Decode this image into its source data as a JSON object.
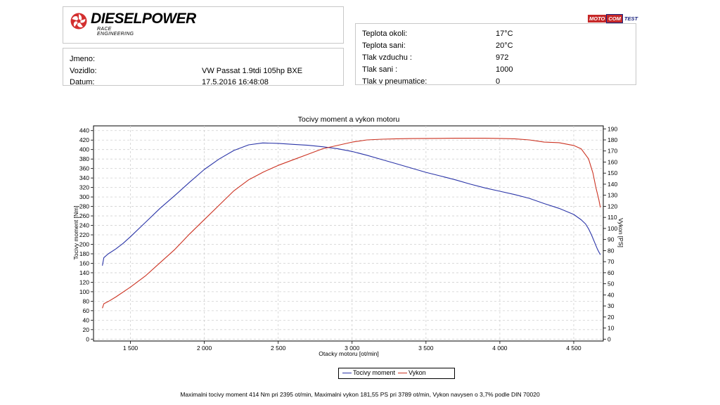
{
  "logo": {
    "brand": "DIESELPOWER",
    "tagline": "RACE ENGINEERING"
  },
  "partner_logo": {
    "part1": "MOTO",
    "part2": "COM",
    "part3": "TEST"
  },
  "vehicle_info": {
    "name_label": "Jmeno:",
    "name_value": "",
    "vehicle_label": "Vozidlo:",
    "vehicle_value": "VW Passat 1.9tdi 105hp BXE",
    "date_label": "Datum:",
    "date_value": "17.5.2016 16:48:08"
  },
  "conditions": [
    {
      "label": "Teplota okoli:",
      "value": "17°C"
    },
    {
      "label": "Teplota sani:",
      "value": "20°C"
    },
    {
      "label": "Tlak vzduchu :",
      "value": "972"
    },
    {
      "label": "Tlak sani :",
      "value": "1000"
    },
    {
      "label": "Tlak v pneumatice:",
      "value": "0"
    }
  ],
  "colors": {
    "torque": "#2b35a8",
    "power": "#cc3322",
    "grid": "#d0d0d0"
  },
  "chart_data": {
    "type": "line",
    "title": "Tocivy moment a vykon motoru",
    "xlabel": "Otacky motoru [ot/min]",
    "ylabel": "Tocivy moment [Nm]",
    "y2label": "Vykon [PS]",
    "xlim": [
      1250,
      4700
    ],
    "ylim": [
      -4,
      450
    ],
    "y2lim": [
      -1.7,
      192.7
    ],
    "x_ticks": [
      1500,
      2000,
      2500,
      3000,
      3500,
      4000,
      4500
    ],
    "x_tick_labels": [
      "1 500",
      "2 000",
      "2 500",
      "3 000",
      "3 500",
      "4 000",
      "4 500"
    ],
    "y_ticks": [
      0,
      20,
      40,
      60,
      80,
      100,
      120,
      140,
      160,
      180,
      200,
      220,
      240,
      260,
      280,
      300,
      320,
      340,
      360,
      380,
      400,
      420,
      440
    ],
    "y2_ticks": [
      0,
      10,
      20,
      30,
      40,
      50,
      60,
      70,
      80,
      90,
      100,
      110,
      120,
      130,
      140,
      150,
      160,
      170,
      180,
      190
    ],
    "grid": true,
    "legend_position": "bottom-center",
    "series": [
      {
        "name": "Tocivy moment",
        "axis": "left",
        "x": [
          1310,
          1320,
          1350,
          1400,
          1450,
          1500,
          1600,
          1700,
          1800,
          1900,
          2000,
          2100,
          2200,
          2300,
          2395,
          2500,
          2600,
          2700,
          2800,
          2900,
          3000,
          3100,
          3200,
          3300,
          3400,
          3500,
          3600,
          3700,
          3800,
          3900,
          4000,
          4100,
          4200,
          4300,
          4400,
          4500,
          4550,
          4580,
          4600,
          4620,
          4640,
          4660,
          4680
        ],
        "y": [
          155,
          172,
          180,
          190,
          202,
          216,
          246,
          276,
          303,
          331,
          358,
          380,
          398,
          410,
          414,
          413,
          411,
          409,
          406,
          402,
          396,
          388,
          379,
          370,
          361,
          352,
          344,
          336,
          327,
          319,
          312,
          305,
          297,
          286,
          276,
          263,
          252,
          243,
          233,
          220,
          205,
          190,
          178
        ]
      },
      {
        "name": "Vykon",
        "axis": "right",
        "x": [
          1310,
          1320,
          1350,
          1400,
          1500,
          1600,
          1700,
          1800,
          1900,
          2000,
          2100,
          2200,
          2300,
          2400,
          2500,
          2600,
          2700,
          2800,
          2900,
          3000,
          3100,
          3200,
          3300,
          3400,
          3500,
          3600,
          3700,
          3789,
          3900,
          4000,
          4100,
          4200,
          4300,
          4400,
          4500,
          4550,
          4600,
          4630,
          4650,
          4670,
          4680
        ],
        "y": [
          28,
          32,
          34,
          38,
          47,
          57,
          69,
          81,
          95,
          108,
          121,
          134,
          144,
          151,
          157,
          162,
          167,
          172,
          175,
          178,
          180,
          180.6,
          181,
          181.2,
          181.3,
          181.4,
          181.5,
          181.55,
          181.5,
          181.3,
          181,
          180,
          178,
          177.5,
          175,
          172,
          163,
          150,
          137,
          126,
          119
        ]
      }
    ]
  },
  "footer": "Maximalni tocivy moment 414 Nm pri 2395 ot/min,  Maximalni vykon 181,55 PS pri 3789 ot/min,  Vykon navysen o 3,7% podle DIN 70020"
}
